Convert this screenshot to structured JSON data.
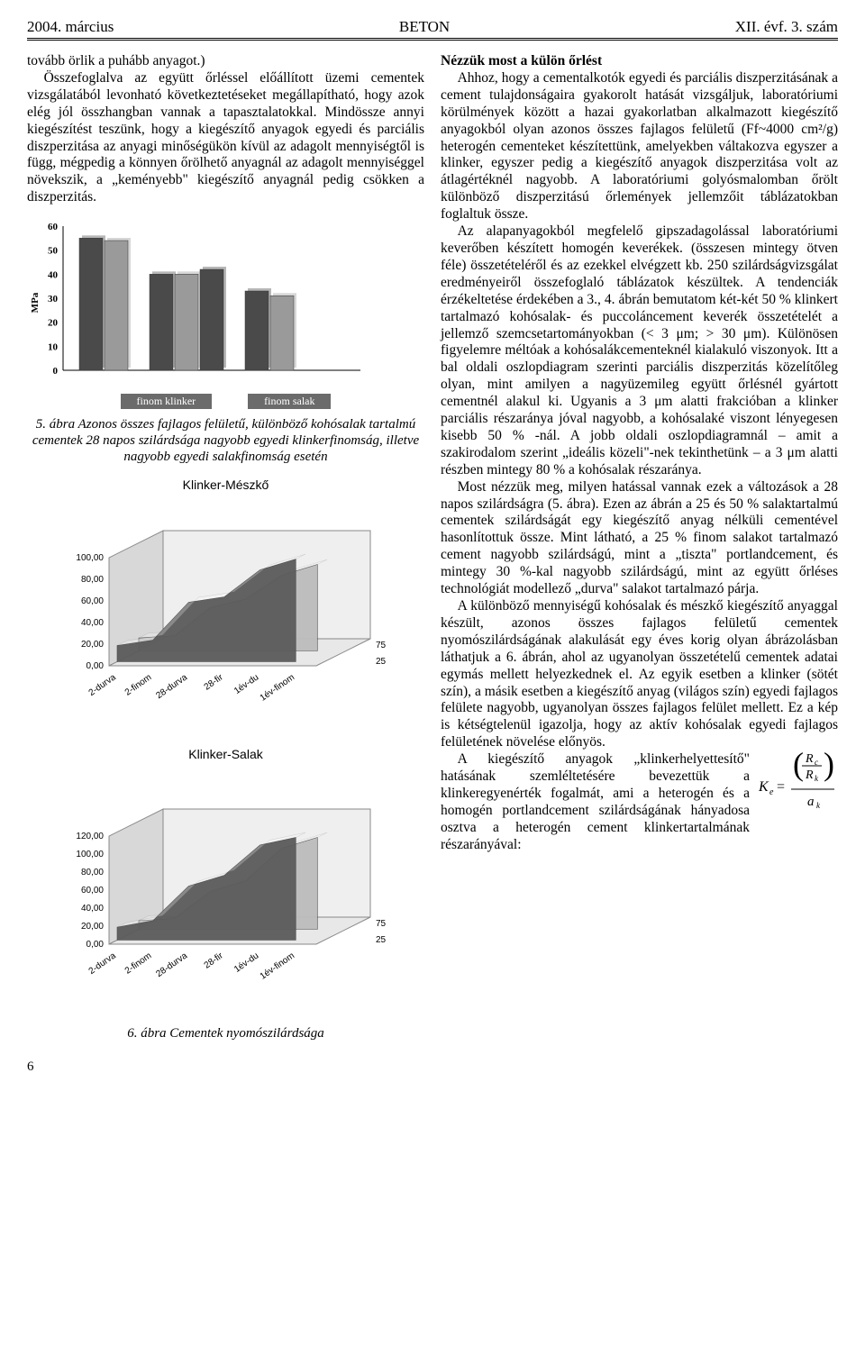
{
  "header": {
    "left": "2004. március",
    "center": "BETON",
    "right": "XII. évf. 3. szám"
  },
  "left_col": {
    "p1": "tovább örlik a puhább anyagot.)",
    "p2": "Összefoglalva az együtt őrléssel előállított üzemi cementek vizsgálatából levonható következtetéseket megállapítható, hogy azok elég jól összhangban vannak a tapasztalatokkal. Mindössze annyi kiegészítést teszünk, hogy a kiegészítő anyagok egyedi és parciális diszperzitása az anyagi minőségükön kívül az adagolt mennyiségtől is függ, mégpedig a könnyen őrölhető anyagnál az adagolt mennyiséggel növekszik, a „keményebb\" kiegészítő anyagnál pedig csökken a diszperzitás.",
    "chart1": {
      "type": "bar",
      "ylabel": "MPa",
      "ymax": 60,
      "ytick_step": 10,
      "groups": [
        {
          "bars": [
            55,
            54
          ]
        },
        {
          "bars": [
            40,
            40,
            42
          ]
        },
        {
          "bars": [
            33,
            31
          ]
        }
      ],
      "color_dark": "#4a4a4a",
      "color_light": "#9a9a9a",
      "legend_a": "finom klinker",
      "legend_b": "finom salak"
    },
    "caption5": "5. ábra  Azonos összes fajlagos felületű, különböző kohósalak tartalmú cementek 28 napos szilárdsága nagyobb egyedi klinkerfinomság, illetve nagyobb egyedi salakfinomság esetén",
    "chart3d_a": {
      "title": "Klinker-Mészkő",
      "ylevels": [
        "100,00",
        "80,00",
        "60,00",
        "40,00",
        "20,00",
        "0,00"
      ],
      "xlabels": [
        "2-durva",
        "2-finom",
        "28-durva",
        "28-fir",
        "1év-du",
        "1év-finom"
      ],
      "depth_labels": [
        "25",
        "75"
      ]
    },
    "chart3d_b": {
      "title": "Klinker-Salak",
      "ylevels": [
        "120,00",
        "100,00",
        "80,00",
        "60,00",
        "40,00",
        "20,00",
        "0,00"
      ],
      "xlabels": [
        "2-durva",
        "2-finom",
        "28-durva",
        "28-fir",
        "1év-du",
        "1év-finom"
      ],
      "depth_labels": [
        "25",
        "75"
      ]
    },
    "caption6": "6. ábra Cementek nyomószilárdsága"
  },
  "right_col": {
    "h": "Nézzük most a külön őrlést",
    "p1": "Ahhoz, hogy a cementalkotók egyedi és parciális diszperzitásának a cement tulajdonságaira gyakorolt hatását vizsgáljuk, laboratóriumi körülmények között a hazai gyakorlatban alkalmazott kiegészítő anyagokból olyan azonos összes fajlagos felületű (Ff~4000 cm²/g) heterogén cementeket készítettünk, amelyekben váltakozva egyszer a klinker, egyszer pedig a kiegészítő anyagok diszperzitása volt az átlagértéknél nagyobb. A laboratóriumi golyósmalomban őrölt különböző diszperzitású őrlemények jellemzőit táblázatokban foglaltuk össze.",
    "p2": "Az alapanyagokból megfelelő gipszadagolással laboratóriumi keverőben készített homogén keverékek. (összesen mintegy ötven féle) összetételéről és az ezekkel elvégzett kb. 250 szilárdságvizsgálat eredményeiről összefoglaló táblázatok készültek. A tendenciák érzékeltetése érdekében a 3., 4. ábrán bemutatom két-két 50 % klinkert tartalmazó kohósalak- és puccoláncement keverék összetételét a jellemző szemcsetartományokban (< 3 μm; > 30 μm). Különösen figyelemre méltóak a kohósalákcementeknél kialakuló viszonyok. Itt a bal oldali oszlopdiagram szerinti parciális diszperzitás közelítőleg olyan, mint amilyen a nagyüzemileg együtt őrlésnél gyártott cementnél alakul ki. Ugyanis a 3 μm alatti frakcióban a klinker parciális részaránya jóval nagyobb, a kohósalaké viszont lényegesen kisebb 50 % -nál. A jobb oldali oszlopdiagramnál – amit a szakirodalom szerint „ideális közeli\"-nek tekinthetünk – a 3 μm alatti részben mintegy 80 % a kohósalak részaránya.",
    "p3": "Most nézzük meg, milyen hatással vannak ezek a változások a 28 napos szilárdságra (5. ábra). Ezen az ábrán a 25 és 50 % salaktartalmú cementek szilárdságát egy kiegészítő anyag nélküli cementével hasonlítottuk össze. Mint látható, a 25 % finom salakot tartalmazó cement nagyobb szilárdságú, mint a „tiszta\" portlandcement, és mintegy 30 %-kal nagyobb szilárdságú, mint az együtt őrléses technológiát modellező „durva\" salakot tartalmazó párja.",
    "p4": "A különböző mennyiségű kohósalak és mészkő kiegészítő anyaggal készült, azonos összes fajlagos felületű cementek nyomószilárdságának alakulását egy éves korig olyan ábrázolásban láthatjuk a 6. ábrán, ahol az ugyanolyan összetételű cementek adatai egymás mellett helyezkednek el. Az egyik esetben a klinker (sötét szín), a másik esetben a kiegészítő anyag (világos szín) egyedi fajlagos felülete nagyobb, ugyanolyan összes fajlagos felület mellett. Ez a kép is kétségtelenül igazolja, hogy az aktív kohósalak egyedi fajlagos felületének növelése előnyös.",
    "p5": "A kiegészítő anyagok „klinkerhelyettesítő\" hatásának szemléltetésére bevezettük a klinkeregyenérték fogalmát, ami a heterogén és a homogén portlandcement szilárdságának hányadosa osztva a heterogén cement klinkertartalmának részarányával:"
  },
  "equation": {
    "left": "K",
    "left_sub": "e",
    "eq": " = ",
    "num_top": "R",
    "num_top_sub": "c",
    "num_bot": "R",
    "num_bot_sub": "k",
    "den": "a",
    "den_sub": "k",
    "parens": true
  },
  "pagenum": "6"
}
